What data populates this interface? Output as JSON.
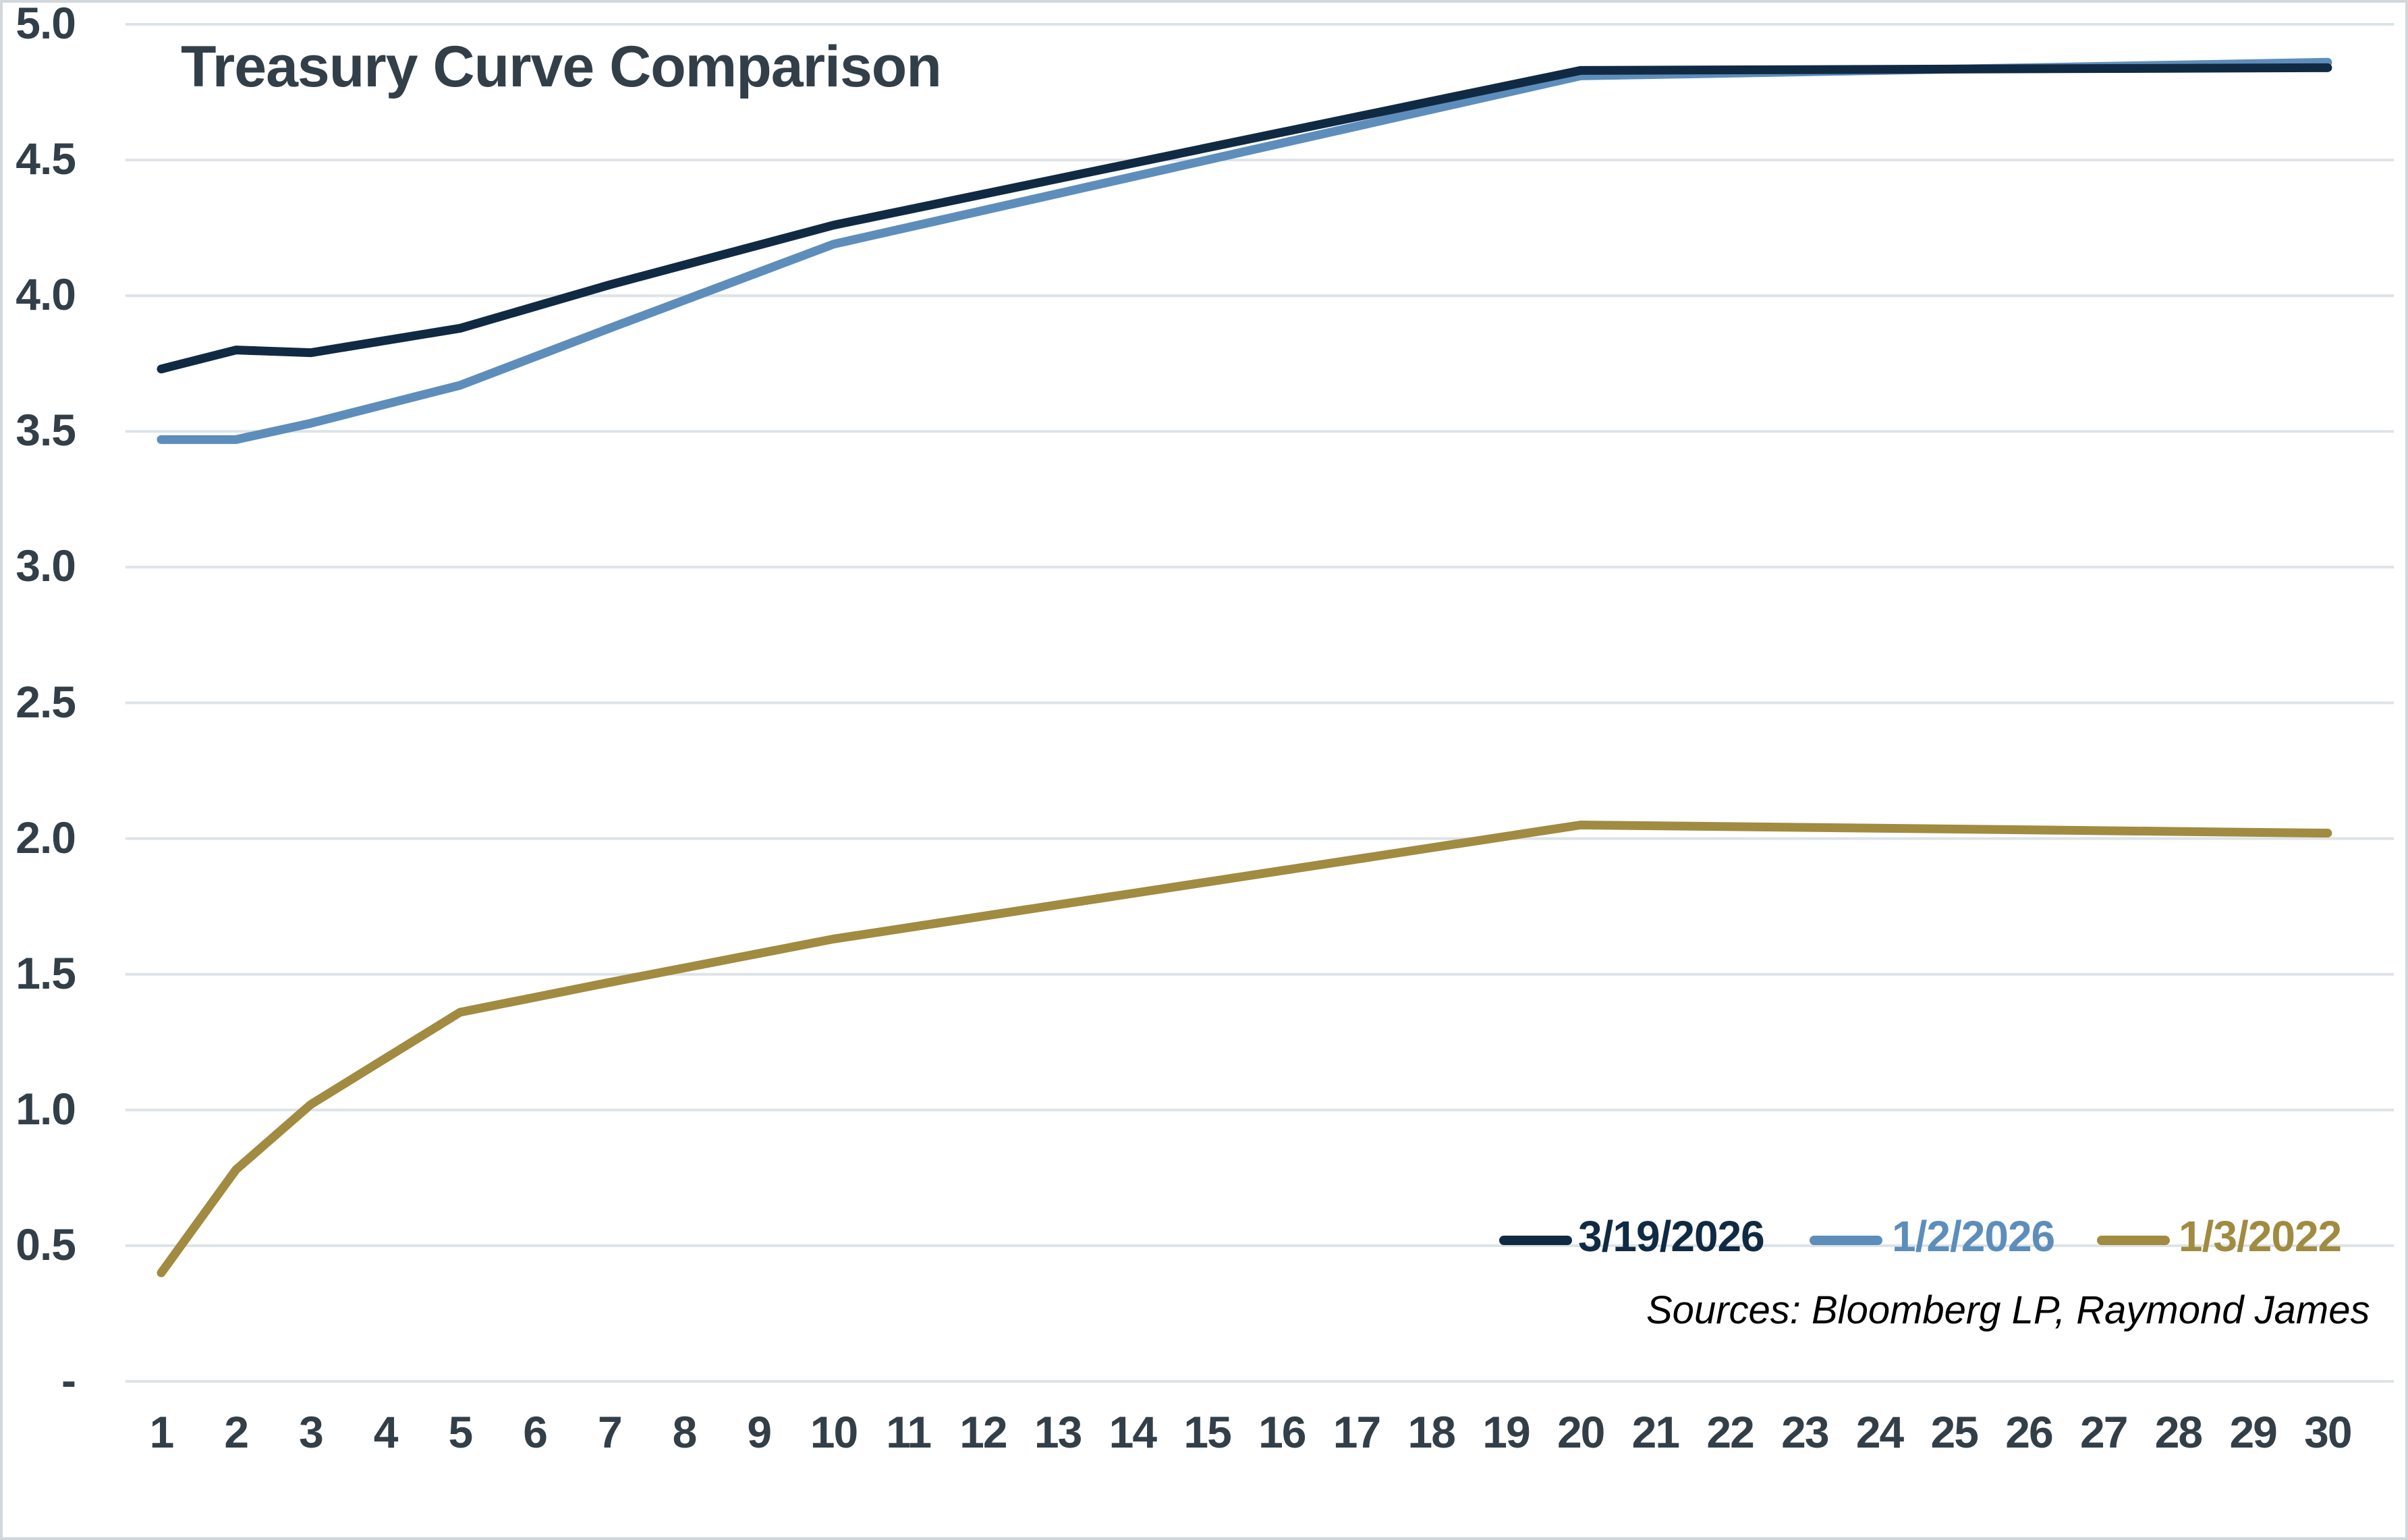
{
  "chart_data": {
    "type": "line",
    "title": "Treasury Curve Comparison",
    "sources": "Sources: Bloomberg LP, Raymond James",
    "xlabel": "",
    "ylabel": "",
    "xlim": [
      1,
      30
    ],
    "ylim": [
      0,
      5
    ],
    "grid": true,
    "legend_position": "inside-bottom-right",
    "x_tick_labels": [
      "1",
      "2",
      "3",
      "4",
      "5",
      "6",
      "7",
      "8",
      "9",
      "10",
      "11",
      "12",
      "13",
      "14",
      "15",
      "16",
      "17",
      "18",
      "19",
      "20",
      "21",
      "22",
      "23",
      "24",
      "25",
      "26",
      "27",
      "28",
      "29",
      "30"
    ],
    "y_ticks": [
      {
        "label": "5.0",
        "value": 5.0
      },
      {
        "label": "4.5",
        "value": 4.5
      },
      {
        "label": "4.0",
        "value": 4.0
      },
      {
        "label": "3.5",
        "value": 3.5
      },
      {
        "label": "3.0",
        "value": 3.0
      },
      {
        "label": "2.5",
        "value": 2.5
      },
      {
        "label": "2.0",
        "value": 2.0
      },
      {
        "label": "1.5",
        "value": 1.5
      },
      {
        "label": "1.0",
        "value": 1.0
      },
      {
        "label": "0.5",
        "value": 0.5
      },
      {
        "label": "-",
        "value": 0.0
      }
    ],
    "x": [
      1,
      2,
      3,
      5,
      7,
      10,
      20,
      30
    ],
    "series": [
      {
        "name": "3/19/2026",
        "color": "#112a43",
        "values": [
          3.73,
          3.8,
          3.79,
          3.88,
          4.04,
          4.26,
          4.83,
          4.84
        ]
      },
      {
        "name": "1/2/2026",
        "color": "#5d8ebb",
        "values": [
          3.47,
          3.47,
          3.53,
          3.67,
          3.88,
          4.19,
          4.81,
          4.86
        ]
      },
      {
        "name": "1/3/2022",
        "color": "#a08b40",
        "values": [
          0.4,
          0.78,
          1.02,
          1.36,
          1.47,
          1.63,
          2.05,
          2.02
        ]
      }
    ],
    "colors": {
      "title": "#333f48",
      "axis_text": "#333f48",
      "gridline": "#dde3e8",
      "sources_text": "#000000",
      "background": "#ffffff",
      "border": "#d2d7db"
    }
  }
}
